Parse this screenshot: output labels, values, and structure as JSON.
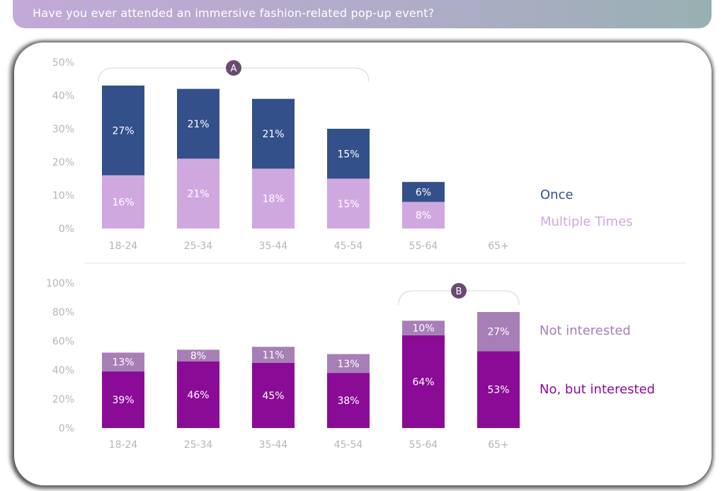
{
  "title": "Have you ever attended an immersive fashion-related pop-up event?",
  "colors": {
    "once": "#33508a",
    "multiple": "#d0a8e0",
    "not_interested": "#a77fb6",
    "no_but_interested": "#8a0c96",
    "axis_text": "#b5b5b5",
    "marker": "#6b4a72"
  },
  "chart_data": [
    {
      "type": "bar",
      "stacked": true,
      "categories": [
        "18-24",
        "25-34",
        "35-44",
        "45-54",
        "55-64",
        "65+"
      ],
      "yticks": [
        "0%",
        "10%",
        "20%",
        "30%",
        "40%",
        "50%"
      ],
      "ylim": [
        0,
        50
      ],
      "series": [
        {
          "name": "Multiple Times",
          "values": [
            16,
            21,
            18,
            15,
            8,
            null
          ],
          "labels": [
            "16%",
            "21%",
            "18%",
            "15%",
            "8%",
            ""
          ]
        },
        {
          "name": "Once",
          "values": [
            27,
            21,
            21,
            15,
            6,
            null
          ],
          "labels": [
            "27%",
            "21%",
            "21%",
            "15%",
            "6%",
            ""
          ]
        }
      ],
      "annotation": {
        "label": "A",
        "spans": [
          "18-24",
          "45-54"
        ]
      },
      "legend": "right"
    },
    {
      "type": "bar",
      "stacked": true,
      "categories": [
        "18-24",
        "25-34",
        "35-44",
        "45-54",
        "55-64",
        "65+"
      ],
      "yticks": [
        "0%",
        "20%",
        "40%",
        "60%",
        "80%",
        "100%"
      ],
      "ylim": [
        0,
        100
      ],
      "series": [
        {
          "name": "No, but interested",
          "values": [
            39,
            46,
            45,
            38,
            64,
            53
          ],
          "labels": [
            "39%",
            "46%",
            "45%",
            "38%",
            "64%",
            "53%"
          ]
        },
        {
          "name": "Not interested",
          "values": [
            13,
            8,
            11,
            13,
            10,
            27
          ],
          "labels": [
            "13%",
            "8%",
            "11%",
            "13%",
            "10%",
            "27%"
          ]
        }
      ],
      "annotation": {
        "label": "B",
        "spans": [
          "55-64",
          "65+"
        ]
      },
      "legend": "right"
    }
  ]
}
